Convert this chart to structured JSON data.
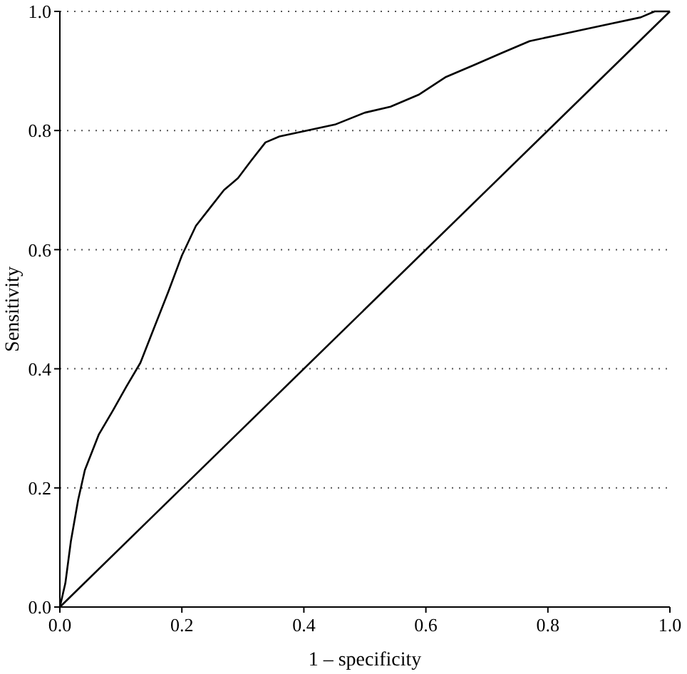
{
  "chart_data": {
    "type": "line",
    "xlabel": "1 – specificity",
    "ylabel": "Sensitivity",
    "xlim": [
      0,
      1
    ],
    "ylim": [
      0,
      1
    ],
    "xticks": [
      {
        "value": 0,
        "label": "0.0"
      },
      {
        "value": 0.2,
        "label": "0.2"
      },
      {
        "value": 0.4,
        "label": "0.4"
      },
      {
        "value": 0.6,
        "label": "0.6"
      },
      {
        "value": 0.8,
        "label": "0.8"
      },
      {
        "value": 1,
        "label": "1.0"
      }
    ],
    "yticks": [
      {
        "value": 0,
        "label": "0.0"
      },
      {
        "value": 0.2,
        "label": "0.2"
      },
      {
        "value": 0.4,
        "label": "0.4"
      },
      {
        "value": 0.6,
        "label": "0.6"
      },
      {
        "value": 0.8,
        "label": "0.8"
      },
      {
        "value": 1,
        "label": "1.0"
      }
    ],
    "grid": "y",
    "marker": "none",
    "line_style": "solid",
    "series": [
      {
        "color": "#000000",
        "x": [
          0,
          0.009,
          0.018,
          0.03,
          0.041,
          0.064,
          0.087,
          0.109,
          0.132,
          0.155,
          0.178,
          0.2,
          0.223,
          0.246,
          0.269,
          0.292,
          0.314,
          0.337,
          0.36,
          0.405,
          0.451,
          0.5,
          0.542,
          0.588,
          0.633,
          0.679,
          0.724,
          0.77,
          0.815,
          0.861,
          0.906,
          0.952,
          0.975,
          1
        ],
        "values": [
          0,
          0.04,
          0.11,
          0.18,
          0.23,
          0.29,
          0.33,
          0.37,
          0.41,
          0.47,
          0.53,
          0.59,
          0.64,
          0.67,
          0.7,
          0.72,
          0.75,
          0.78,
          0.79,
          0.8,
          0.81,
          0.83,
          0.84,
          0.86,
          0.89,
          0.91,
          0.93,
          0.95,
          0.96,
          0.97,
          0.98,
          0.99,
          1,
          1
        ]
      },
      {
        "color": "#000000",
        "x": [
          0,
          1
        ],
        "values": [
          0,
          1
        ]
      }
    ]
  }
}
